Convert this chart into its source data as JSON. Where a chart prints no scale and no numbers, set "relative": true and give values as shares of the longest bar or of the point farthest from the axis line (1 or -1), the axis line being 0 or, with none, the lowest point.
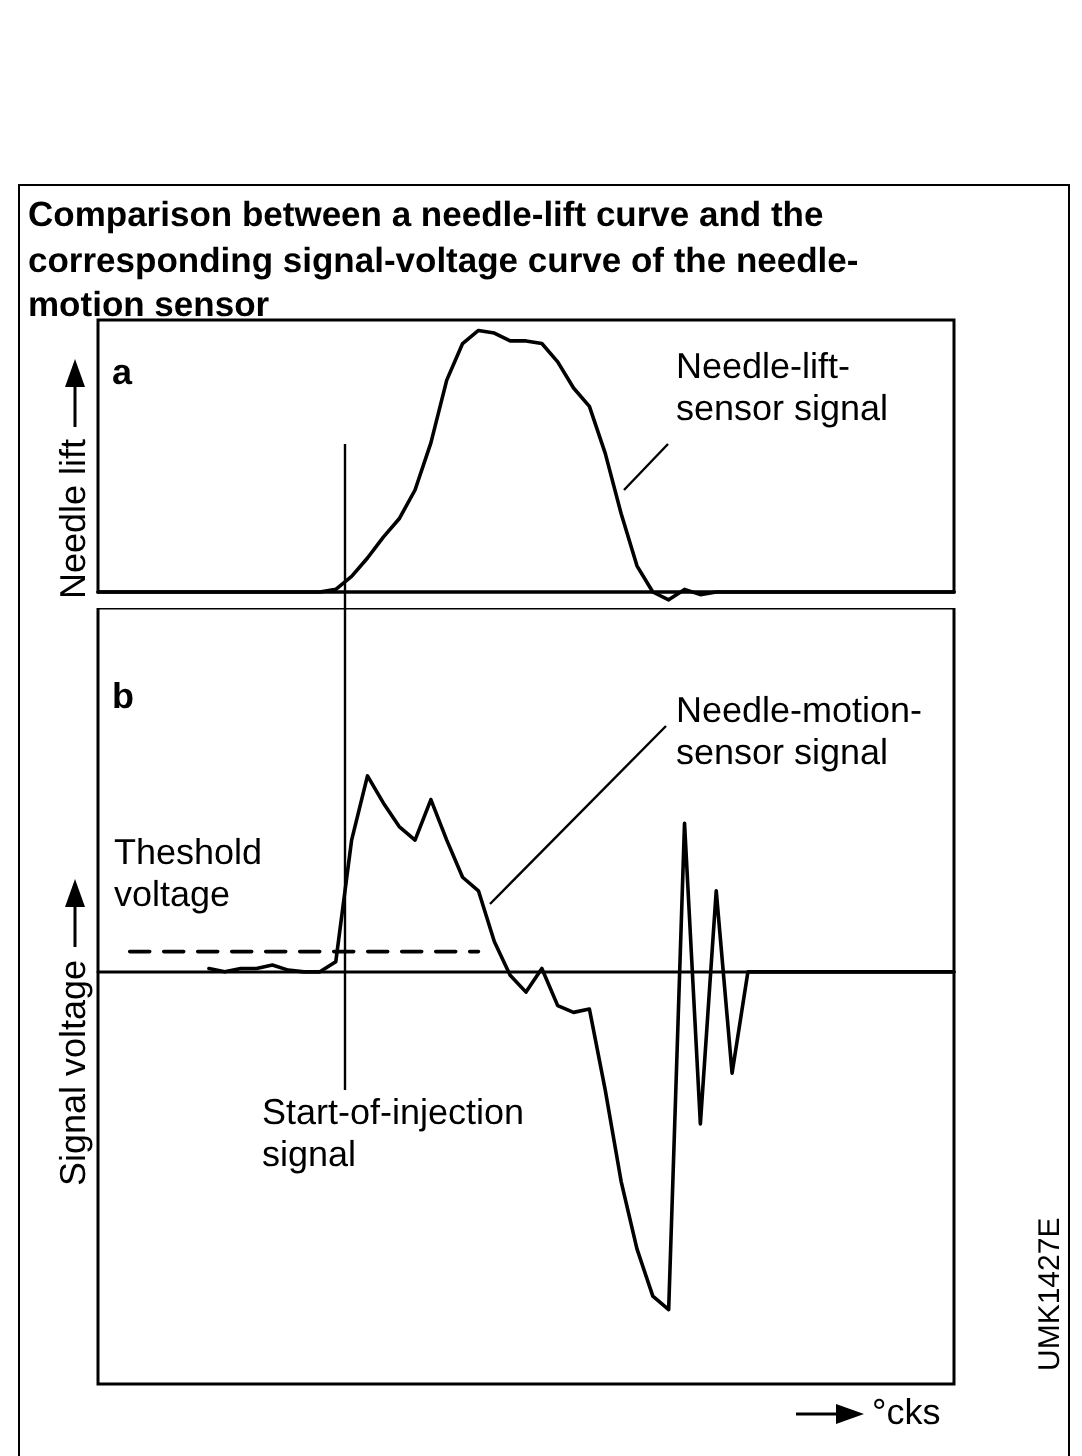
{
  "chart_data": [
    {
      "type": "line",
      "title": "Comparison between a needle-lift curve and the corresponding signal-voltage curve of the needle-motion sensor",
      "ylabel": "Needle lift",
      "relative": true,
      "marker": "none",
      "annotations": [
        "a"
      ],
      "categories": [
        null,
        null,
        null,
        null,
        null,
        null,
        null,
        null,
        null,
        null,
        null,
        null,
        null,
        null,
        null,
        null,
        null,
        null,
        null,
        null,
        null,
        null,
        null,
        null,
        null,
        null,
        null,
        null,
        null,
        null,
        null,
        null,
        null,
        null,
        null,
        null,
        null,
        null,
        null,
        null,
        null,
        null,
        null,
        null,
        null,
        null,
        null,
        null,
        null,
        null,
        null,
        null,
        null,
        null,
        null
      ],
      "series": [
        {
          "name": "Needle-lift-sensor signal",
          "color": "#000000",
          "values": [
            0,
            0,
            0,
            0,
            0,
            0,
            0,
            0,
            0,
            0,
            0,
            0,
            0,
            0,
            0,
            0.01,
            0.06,
            0.13,
            0.21,
            0.28,
            0.39,
            0.57,
            0.81,
            0.95,
            1,
            0.99,
            0.96,
            0.96,
            0.95,
            0.88,
            0.78,
            0.71,
            0.53,
            0.3,
            0.1,
            0,
            -0.03,
            0.01,
            -0.01,
            0,
            0,
            0,
            0,
            0,
            0,
            0,
            0,
            0,
            0,
            0,
            0,
            0,
            0,
            0,
            0
          ]
        }
      ]
    },
    {
      "type": "line",
      "ylabel": "Signal voltage",
      "xlabel": "°cks",
      "relative": true,
      "marker": "none",
      "annotations": [
        "b",
        "Theshold voltage",
        "Start-of-injection signal",
        "UMK1427E"
      ],
      "categories": [
        null,
        null,
        null,
        null,
        null,
        null,
        null,
        null,
        null,
        null,
        null,
        null,
        null,
        null,
        null,
        null,
        null,
        null,
        null,
        null,
        null,
        null,
        null,
        null,
        null,
        null,
        null,
        null,
        null,
        null,
        null,
        null,
        null,
        null,
        null,
        null,
        null,
        null,
        null,
        null,
        null,
        null,
        null,
        null,
        null,
        null,
        null,
        null,
        null,
        null,
        null,
        null,
        null,
        null,
        null
      ],
      "series": [
        {
          "name": "Needle-motion-sensor signal",
          "color": "#000000",
          "values": [
            null,
            null,
            null,
            null,
            null,
            null,
            null,
            0.01,
            0,
            0.01,
            0.01,
            0.02,
            0.005,
            0,
            0,
            0.03,
            0.39,
            0.58,
            0.5,
            0.43,
            0.39,
            0.51,
            0.39,
            0.28,
            0.24,
            0.09,
            -0.01,
            -0.06,
            0.01,
            -0.1,
            -0.12,
            -0.11,
            -0.35,
            -0.62,
            -0.82,
            -0.96,
            -1,
            0.44,
            -0.45,
            0.24,
            -0.3,
            0,
            0,
            0,
            0,
            0,
            0,
            0,
            0,
            0,
            0,
            0,
            0,
            0,
            0
          ]
        },
        {
          "color": "#000000",
          "line_style": "dashed",
          "values": [
            null,
            null,
            0.06,
            0.06,
            0.06,
            0.06,
            0.06,
            0.06,
            0.06,
            0.06,
            0.06,
            0.06,
            0.06,
            0.06,
            0.06,
            0.06,
            0.06,
            0.06,
            0.06,
            0.06,
            0.06,
            0.06,
            0.06,
            0.06,
            0.06,
            null,
            null,
            null,
            null,
            null,
            null,
            null,
            null,
            null,
            null,
            null,
            null,
            null,
            null,
            null,
            null,
            null,
            null,
            null,
            null,
            null,
            null,
            null,
            null,
            null,
            null,
            null,
            null,
            null,
            null
          ]
        }
      ]
    }
  ]
}
